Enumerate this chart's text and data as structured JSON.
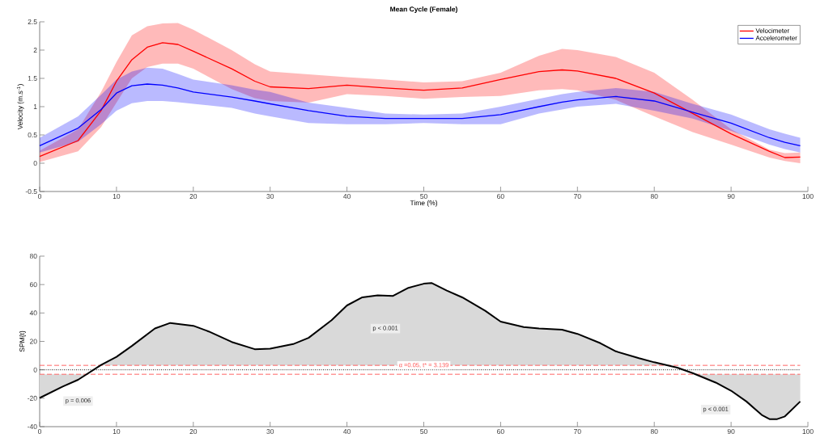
{
  "chart_data": [
    {
      "type": "line",
      "title": "Mean Cycle (Female)",
      "xlabel": "Time (%)",
      "ylabel": "Velocity (m.s$^{-1}$)",
      "x": [
        0,
        5,
        8,
        10,
        12,
        14,
        16,
        18,
        20,
        25,
        28,
        30,
        35,
        40,
        45,
        50,
        55,
        60,
        65,
        68,
        70,
        75,
        80,
        85,
        90,
        95,
        97,
        99
      ],
      "series": [
        {
          "name": "Velocimeter",
          "color": "#ff0000",
          "values": [
            0.12,
            0.4,
            0.93,
            1.45,
            1.83,
            2.05,
            2.13,
            2.1,
            1.98,
            1.67,
            1.45,
            1.35,
            1.32,
            1.38,
            1.33,
            1.29,
            1.33,
            1.48,
            1.62,
            1.65,
            1.63,
            1.5,
            1.24,
            0.88,
            0.52,
            0.21,
            0.1,
            0.11
          ],
          "lower": [
            0.02,
            0.21,
            0.64,
            1.07,
            1.5,
            1.7,
            1.76,
            1.76,
            1.67,
            1.31,
            1.15,
            1.1,
            1.07,
            1.22,
            1.19,
            1.14,
            1.17,
            1.19,
            1.29,
            1.31,
            1.29,
            1.12,
            0.83,
            0.55,
            0.33,
            0.1,
            0.04,
            0.0
          ],
          "upper": [
            0.22,
            0.6,
            1.26,
            1.79,
            2.26,
            2.42,
            2.47,
            2.48,
            2.36,
            2.0,
            1.75,
            1.62,
            1.57,
            1.52,
            1.48,
            1.43,
            1.45,
            1.6,
            1.9,
            2.02,
            2.0,
            1.88,
            1.6,
            1.12,
            0.6,
            0.24,
            0.18,
            0.19
          ]
        },
        {
          "name": "Accelerometer",
          "color": "#0000ff",
          "values": [
            0.31,
            0.62,
            0.95,
            1.24,
            1.37,
            1.4,
            1.38,
            1.33,
            1.26,
            1.17,
            1.1,
            1.05,
            0.93,
            0.83,
            0.79,
            0.79,
            0.79,
            0.86,
            1.0,
            1.08,
            1.12,
            1.18,
            1.1,
            0.9,
            0.71,
            0.45,
            0.37,
            0.31
          ],
          "lower": [
            0.19,
            0.38,
            0.69,
            0.93,
            1.06,
            1.1,
            1.1,
            1.08,
            1.05,
            0.98,
            0.88,
            0.83,
            0.71,
            0.69,
            0.69,
            0.71,
            0.69,
            0.69,
            0.88,
            0.95,
            1.0,
            1.05,
            0.93,
            0.79,
            0.57,
            0.33,
            0.25,
            0.19
          ],
          "upper": [
            0.45,
            0.83,
            1.21,
            1.48,
            1.62,
            1.69,
            1.67,
            1.58,
            1.48,
            1.38,
            1.3,
            1.26,
            1.07,
            0.98,
            0.88,
            0.86,
            0.88,
            1.0,
            1.14,
            1.22,
            1.26,
            1.33,
            1.26,
            1.05,
            0.86,
            0.6,
            0.52,
            0.45
          ]
        }
      ],
      "xlim": [
        0,
        100
      ],
      "ylim": [
        -0.5,
        2.5
      ],
      "xticks": [
        0,
        10,
        20,
        30,
        40,
        50,
        60,
        70,
        80,
        90,
        100
      ],
      "yticks": [
        -0.5,
        0,
        0.5,
        1,
        1.5,
        2,
        2.5
      ],
      "legend": "top right",
      "grid": false,
      "marker": "none",
      "line_style": "solid"
    },
    {
      "type": "line",
      "ylabel": "SPM{t}",
      "x": [
        0,
        3,
        5,
        8,
        10,
        12,
        15,
        17,
        20,
        22,
        25,
        28,
        30,
        33,
        35,
        38,
        40,
        42,
        44,
        46,
        48,
        50,
        51,
        53,
        55,
        58,
        60,
        63,
        65,
        68,
        70,
        73,
        75,
        78,
        80,
        83,
        85,
        88,
        90,
        92,
        94,
        95,
        96,
        97,
        99
      ],
      "series": [
        {
          "color": "#000000",
          "values": [
            -19.8,
            -11.8,
            -7,
            3.4,
            9.1,
            16.8,
            29.1,
            33,
            31,
            27,
            19.6,
            14.5,
            14.9,
            18.1,
            22.5,
            34.9,
            45.3,
            51,
            52.4,
            52,
            57.7,
            60.6,
            61.1,
            55.8,
            51,
            41.5,
            33.9,
            30.1,
            29.1,
            28.2,
            25.3,
            18.7,
            13,
            8.2,
            5.3,
            1.5,
            -2.3,
            -9,
            -14.7,
            -22.3,
            -31.8,
            -34.7,
            -34.7,
            -32.8,
            -22.3
          ]
        }
      ],
      "ref_lines": [
        {
          "axis": "y",
          "value": 3.139,
          "label": "α =0.05, t* = 3.139",
          "color": "#ff5555",
          "line_style": "dashed"
        },
        {
          "axis": "y",
          "value": -3.139,
          "color": "#ff5555",
          "line_style": "dashed"
        },
        {
          "axis": "y",
          "value": 0,
          "color": "#000000",
          "line_style": "dotted"
        }
      ],
      "annotations": [
        {
          "text": "p = 0.006",
          "x": 5,
          "y": -22
        },
        {
          "text": "p < 0.001",
          "x": 45,
          "y": 29
        },
        {
          "text": "p < 0.001",
          "x": 88,
          "y": -28
        }
      ],
      "xlim": [
        0,
        100
      ],
      "ylim": [
        -40,
        80
      ],
      "xticks": [
        0,
        10,
        20,
        30,
        40,
        50,
        60,
        70,
        80,
        90,
        100
      ],
      "yticks": [
        -40,
        -20,
        0,
        20,
        40,
        60,
        80
      ],
      "grid": false,
      "marker": "none",
      "line_style": "solid"
    }
  ]
}
